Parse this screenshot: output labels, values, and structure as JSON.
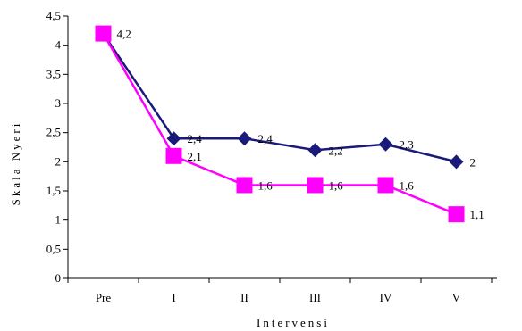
{
  "chart_data": {
    "type": "line",
    "title": "",
    "xlabel": "Intervensi",
    "ylabel": "Skala Nyeri",
    "categories": [
      "Pre",
      "I",
      "II",
      "III",
      "IV",
      "V"
    ],
    "ylim": [
      0,
      4.5
    ],
    "yticks": [
      0,
      0.5,
      1,
      1.5,
      2,
      2.5,
      3,
      3.5,
      4,
      4.5
    ],
    "ytick_labels": [
      "0",
      "0,5",
      "1",
      "1,5",
      "2",
      "2,5",
      "3",
      "3,5",
      "4",
      "4,5"
    ],
    "grid": false,
    "legend": "none",
    "series": [
      {
        "marker": "diamond",
        "color": "#1a1a7a",
        "values": [
          4.2,
          2.4,
          2.4,
          2.2,
          2.3,
          2.0
        ],
        "labels": [
          "",
          "2,4",
          "2,4",
          "2,2",
          "2,3",
          "2"
        ]
      },
      {
        "marker": "square",
        "color": "#ff00ff",
        "values": [
          4.2,
          2.1,
          1.6,
          1.6,
          1.6,
          1.1
        ],
        "labels": [
          "4,2",
          "2,1",
          "1,6",
          "1,6",
          "1,6",
          "1,1"
        ]
      }
    ]
  }
}
